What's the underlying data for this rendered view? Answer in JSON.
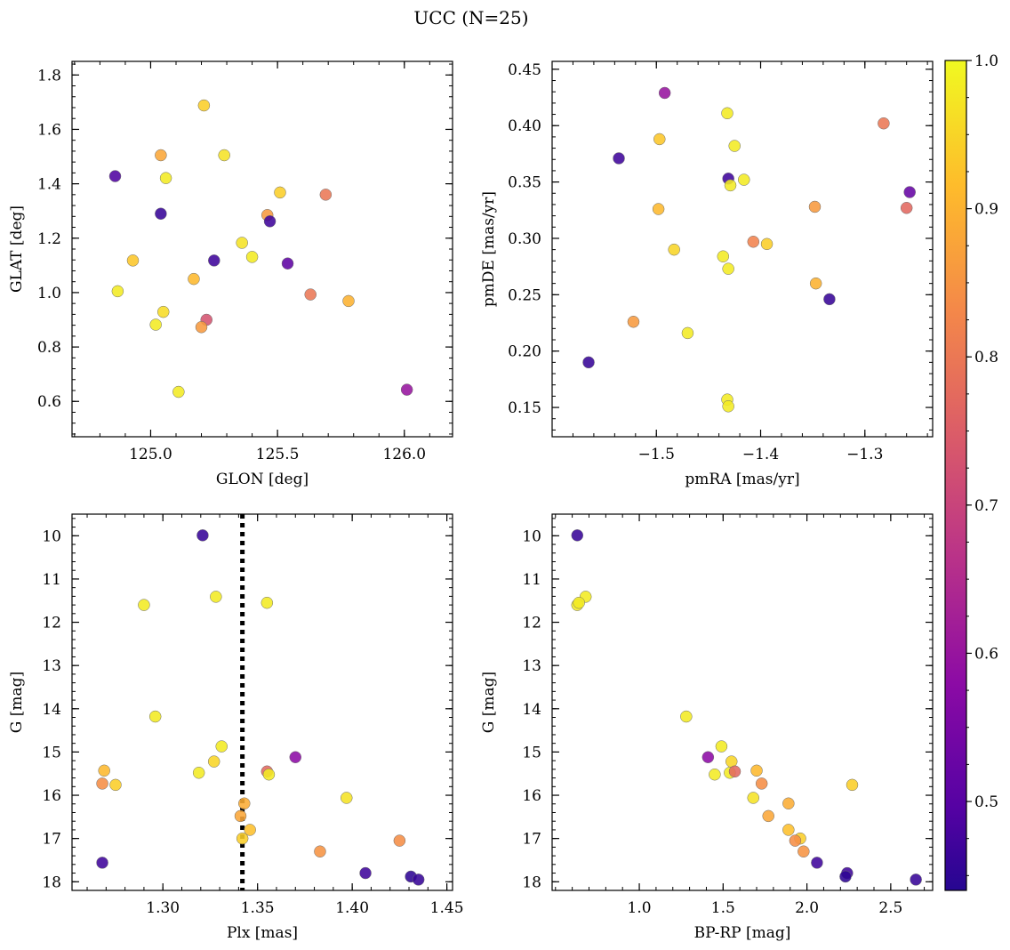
{
  "figure": {
    "title": "UCC (N=25)",
    "colorbar": {
      "min": 0.44,
      "max": 1.0,
      "ticks": [
        0.5,
        0.6,
        0.7,
        0.8,
        0.9,
        1.0
      ],
      "tick_labels": [
        "0.5",
        "0.6",
        "0.7",
        "0.8",
        "0.9",
        "1.0"
      ],
      "colormap": "plasma"
    }
  },
  "chart_data": [
    {
      "type": "scatter",
      "xlabel": "GLON [deg]",
      "ylabel": "GLAT [deg]",
      "xlim": [
        124.69,
        126.19
      ],
      "ylim": [
        0.47,
        1.85
      ],
      "xticks": [
        125.0,
        125.5,
        126.0
      ],
      "xtick_labels": [
        "125.0",
        "125.5",
        "126.0"
      ],
      "yticks": [
        0.6,
        0.8,
        1.0,
        1.2,
        1.4,
        1.6,
        1.8
      ],
      "ytick_labels": [
        "0.6",
        "0.8",
        "1.0",
        "1.2",
        "1.4",
        "1.6",
        "1.8"
      ],
      "y_inverted": false,
      "points": [
        {
          "x": 124.86,
          "y": 1.428,
          "c": 0.49
        },
        {
          "x": 125.04,
          "y": 1.29,
          "c": 0.46
        },
        {
          "x": 125.04,
          "y": 1.505,
          "c": 0.88
        },
        {
          "x": 125.21,
          "y": 1.688,
          "c": 0.94
        },
        {
          "x": 125.29,
          "y": 1.505,
          "c": 0.97
        },
        {
          "x": 125.06,
          "y": 1.421,
          "c": 0.98
        },
        {
          "x": 124.93,
          "y": 1.118,
          "c": 0.93
        },
        {
          "x": 124.87,
          "y": 1.005,
          "c": 0.98
        },
        {
          "x": 125.25,
          "y": 1.118,
          "c": 0.47
        },
        {
          "x": 125.05,
          "y": 0.929,
          "c": 0.96
        },
        {
          "x": 125.02,
          "y": 0.882,
          "c": 0.98
        },
        {
          "x": 125.17,
          "y": 1.05,
          "c": 0.91
        },
        {
          "x": 125.22,
          "y": 0.9,
          "c": 0.73
        },
        {
          "x": 125.2,
          "y": 0.873,
          "c": 0.86
        },
        {
          "x": 125.11,
          "y": 0.635,
          "c": 0.98
        },
        {
          "x": 125.36,
          "y": 1.183,
          "c": 0.97
        },
        {
          "x": 125.4,
          "y": 1.131,
          "c": 0.98
        },
        {
          "x": 125.46,
          "y": 1.285,
          "c": 0.86
        },
        {
          "x": 125.47,
          "y": 1.262,
          "c": 0.47
        },
        {
          "x": 125.51,
          "y": 1.368,
          "c": 0.94
        },
        {
          "x": 125.54,
          "y": 1.107,
          "c": 0.51
        },
        {
          "x": 125.69,
          "y": 1.36,
          "c": 0.8
        },
        {
          "x": 125.63,
          "y": 0.993,
          "c": 0.8
        },
        {
          "x": 125.78,
          "y": 0.969,
          "c": 0.9
        },
        {
          "x": 126.01,
          "y": 0.643,
          "c": 0.6
        }
      ]
    },
    {
      "type": "scatter",
      "xlabel": "pmRA [mas/yr]",
      "ylabel": "pmDE [mas/yr]",
      "xlim": [
        -1.6,
        -1.235
      ],
      "ylim": [
        0.124,
        0.457
      ],
      "xticks": [
        -1.5,
        -1.4,
        -1.3
      ],
      "xtick_labels": [
        "−1.5",
        "−1.4",
        "−1.3"
      ],
      "yticks": [
        0.15,
        0.2,
        0.25,
        0.3,
        0.35,
        0.4,
        0.45
      ],
      "ytick_labels": [
        "0.15",
        "0.20",
        "0.25",
        "0.30",
        "0.35",
        "0.40",
        "0.45"
      ],
      "y_inverted": false,
      "points": [
        {
          "x": -1.492,
          "y": 0.429,
          "c": 0.6
        },
        {
          "x": -1.432,
          "y": 0.411,
          "c": 0.98
        },
        {
          "x": -1.497,
          "y": 0.388,
          "c": 0.93
        },
        {
          "x": -1.425,
          "y": 0.382,
          "c": 0.98
        },
        {
          "x": -1.536,
          "y": 0.371,
          "c": 0.47
        },
        {
          "x": -1.431,
          "y": 0.353,
          "c": 0.47
        },
        {
          "x": -1.429,
          "y": 0.347,
          "c": 0.98
        },
        {
          "x": -1.416,
          "y": 0.352,
          "c": 0.98
        },
        {
          "x": -1.498,
          "y": 0.326,
          "c": 0.91
        },
        {
          "x": -1.348,
          "y": 0.328,
          "c": 0.86
        },
        {
          "x": -1.282,
          "y": 0.402,
          "c": 0.8
        },
        {
          "x": -1.257,
          "y": 0.341,
          "c": 0.52
        },
        {
          "x": -1.26,
          "y": 0.327,
          "c": 0.77
        },
        {
          "x": -1.407,
          "y": 0.297,
          "c": 0.82
        },
        {
          "x": -1.394,
          "y": 0.295,
          "c": 0.94
        },
        {
          "x": -1.483,
          "y": 0.29,
          "c": 0.95
        },
        {
          "x": -1.436,
          "y": 0.284,
          "c": 0.98
        },
        {
          "x": -1.431,
          "y": 0.273,
          "c": 0.98
        },
        {
          "x": -1.347,
          "y": 0.26,
          "c": 0.9
        },
        {
          "x": -1.334,
          "y": 0.246,
          "c": 0.46
        },
        {
          "x": -1.522,
          "y": 0.226,
          "c": 0.86
        },
        {
          "x": -1.47,
          "y": 0.216,
          "c": 0.98
        },
        {
          "x": -1.565,
          "y": 0.19,
          "c": 0.46
        },
        {
          "x": -1.432,
          "y": 0.157,
          "c": 0.98
        },
        {
          "x": -1.431,
          "y": 0.151,
          "c": 0.98
        }
      ]
    },
    {
      "type": "scatter",
      "xlabel": "Plx [mas]",
      "ylabel": "G [mag]",
      "xlim": [
        1.252,
        1.453
      ],
      "ylim": [
        9.5,
        18.2
      ],
      "xticks": [
        1.3,
        1.35,
        1.4,
        1.45
      ],
      "xtick_labels": [
        "1.30",
        "1.35",
        "1.40",
        "1.45"
      ],
      "yticks": [
        10,
        11,
        12,
        13,
        14,
        15,
        16,
        17,
        18
      ],
      "ytick_labels": [
        "10",
        "11",
        "12",
        "13",
        "14",
        "15",
        "16",
        "17",
        "18"
      ],
      "y_inverted": true,
      "vline": {
        "x": 1.342,
        "style": "dotted"
      },
      "points": [
        {
          "x": 1.321,
          "y": 9.99,
          "c": 0.46
        },
        {
          "x": 1.328,
          "y": 11.41,
          "c": 0.98
        },
        {
          "x": 1.29,
          "y": 11.6,
          "c": 0.98
        },
        {
          "x": 1.355,
          "y": 11.55,
          "c": 0.98
        },
        {
          "x": 1.296,
          "y": 14.18,
          "c": 0.98
        },
        {
          "x": 1.331,
          "y": 14.87,
          "c": 0.98
        },
        {
          "x": 1.37,
          "y": 15.12,
          "c": 0.58
        },
        {
          "x": 1.327,
          "y": 15.22,
          "c": 0.95
        },
        {
          "x": 1.269,
          "y": 15.43,
          "c": 0.91
        },
        {
          "x": 1.319,
          "y": 15.48,
          "c": 0.98
        },
        {
          "x": 1.355,
          "y": 15.45,
          "c": 0.77
        },
        {
          "x": 1.356,
          "y": 15.52,
          "c": 0.98
        },
        {
          "x": 1.268,
          "y": 15.73,
          "c": 0.84
        },
        {
          "x": 1.275,
          "y": 15.76,
          "c": 0.94
        },
        {
          "x": 1.397,
          "y": 16.06,
          "c": 0.97
        },
        {
          "x": 1.343,
          "y": 16.19,
          "c": 0.89
        },
        {
          "x": 1.341,
          "y": 16.48,
          "c": 0.88
        },
        {
          "x": 1.346,
          "y": 16.8,
          "c": 0.92
        },
        {
          "x": 1.342,
          "y": 17.0,
          "c": 0.94
        },
        {
          "x": 1.425,
          "y": 17.05,
          "c": 0.84
        },
        {
          "x": 1.383,
          "y": 17.3,
          "c": 0.85
        },
        {
          "x": 1.268,
          "y": 17.56,
          "c": 0.47
        },
        {
          "x": 1.407,
          "y": 17.8,
          "c": 0.47
        },
        {
          "x": 1.431,
          "y": 17.88,
          "c": 0.45
        },
        {
          "x": 1.435,
          "y": 17.95,
          "c": 0.46
        }
      ]
    },
    {
      "type": "scatter",
      "xlabel": "BP-RP [mag]",
      "ylabel": "G [mag]",
      "xlim": [
        0.48,
        2.75
      ],
      "ylim": [
        9.5,
        18.2
      ],
      "xticks": [
        1.0,
        1.5,
        2.0,
        2.5
      ],
      "xtick_labels": [
        "1.0",
        "1.5",
        "2.0",
        "2.5"
      ],
      "yticks": [
        10,
        11,
        12,
        13,
        14,
        15,
        16,
        17,
        18
      ],
      "ytick_labels": [
        "10",
        "11",
        "12",
        "13",
        "14",
        "15",
        "16",
        "17",
        "18"
      ],
      "y_inverted": true,
      "points": [
        {
          "x": 0.63,
          "y": 9.99,
          "c": 0.46
        },
        {
          "x": 0.68,
          "y": 11.41,
          "c": 0.98
        },
        {
          "x": 0.63,
          "y": 11.6,
          "c": 0.98
        },
        {
          "x": 0.64,
          "y": 11.55,
          "c": 0.98
        },
        {
          "x": 1.28,
          "y": 14.18,
          "c": 0.98
        },
        {
          "x": 1.49,
          "y": 14.87,
          "c": 0.98
        },
        {
          "x": 1.41,
          "y": 15.12,
          "c": 0.58
        },
        {
          "x": 1.55,
          "y": 15.22,
          "c": 0.95
        },
        {
          "x": 1.7,
          "y": 15.43,
          "c": 0.91
        },
        {
          "x": 1.54,
          "y": 15.48,
          "c": 0.98
        },
        {
          "x": 1.57,
          "y": 15.45,
          "c": 0.77
        },
        {
          "x": 1.45,
          "y": 15.52,
          "c": 0.98
        },
        {
          "x": 1.73,
          "y": 15.73,
          "c": 0.84
        },
        {
          "x": 2.27,
          "y": 15.76,
          "c": 0.94
        },
        {
          "x": 1.68,
          "y": 16.06,
          "c": 0.97
        },
        {
          "x": 1.89,
          "y": 16.19,
          "c": 0.89
        },
        {
          "x": 1.77,
          "y": 16.48,
          "c": 0.88
        },
        {
          "x": 1.89,
          "y": 16.8,
          "c": 0.92
        },
        {
          "x": 1.96,
          "y": 17.0,
          "c": 0.94
        },
        {
          "x": 1.93,
          "y": 17.05,
          "c": 0.84
        },
        {
          "x": 1.98,
          "y": 17.3,
          "c": 0.85
        },
        {
          "x": 2.06,
          "y": 17.56,
          "c": 0.47
        },
        {
          "x": 2.24,
          "y": 17.8,
          "c": 0.47
        },
        {
          "x": 2.23,
          "y": 17.88,
          "c": 0.45
        },
        {
          "x": 2.65,
          "y": 17.95,
          "c": 0.46
        }
      ]
    }
  ]
}
